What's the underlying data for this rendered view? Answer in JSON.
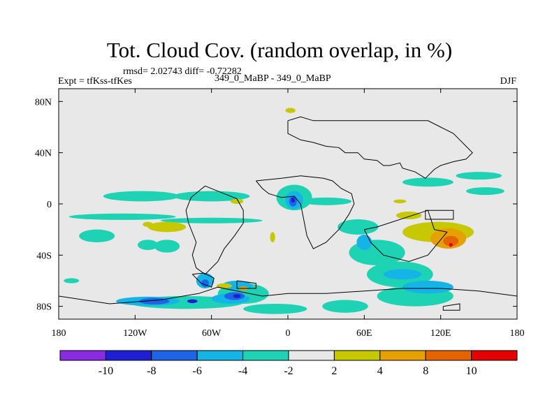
{
  "header": {
    "title": "Tot. Cloud Cov. (random overlap, in %)",
    "stats": "rmsd= 2.02743 diff= -0.72282",
    "experiment": "Expt = tfKss-tfKes",
    "period": "349_0_MaBP - 349_0_MaBP",
    "season": "DJF"
  },
  "axes": {
    "x_range": [
      -180,
      180
    ],
    "y_range": [
      -90,
      90
    ],
    "x_ticks": [
      {
        "value": -180,
        "label": "180"
      },
      {
        "value": -120,
        "label": "120W"
      },
      {
        "value": -60,
        "label": "60W"
      },
      {
        "value": 0,
        "label": "0"
      },
      {
        "value": 60,
        "label": "60E"
      },
      {
        "value": 120,
        "label": "120E"
      },
      {
        "value": 180,
        "label": "180"
      }
    ],
    "y_ticks": [
      {
        "value": 80,
        "label": "80N"
      },
      {
        "value": 40,
        "label": "40N"
      },
      {
        "value": 0,
        "label": "0"
      },
      {
        "value": -40,
        "label": "40S"
      },
      {
        "value": -80,
        "label": "80S"
      }
    ]
  },
  "colorbar": {
    "colors": [
      "#8a2be2",
      "#1e1ed2",
      "#1e64e6",
      "#14b4e6",
      "#1ed2b4",
      "#e8e8e8",
      "#c8c800",
      "#e6a000",
      "#e66400",
      "#e60000"
    ],
    "labels": [
      {
        "boundary": 1,
        "text": "-10"
      },
      {
        "boundary": 2,
        "text": "-8"
      },
      {
        "boundary": 3,
        "text": "-6"
      },
      {
        "boundary": 4,
        "text": "-4"
      },
      {
        "boundary": 5,
        "text": "-2"
      },
      {
        "boundary": 6,
        "text": "2"
      },
      {
        "boundary": 7,
        "text": "4"
      },
      {
        "boundary": 8,
        "text": "8"
      },
      {
        "boundary": 9,
        "text": "10"
      }
    ]
  },
  "chart_data": {
    "type": "heatmap",
    "background_color": "#e8e8e8",
    "fields": [
      {
        "level": "-4 to -2",
        "color": "#1ed2b4",
        "shapes": [
          {
            "lon": -115,
            "lat": 6,
            "rx": 30,
            "ry": 4
          },
          {
            "lon": -60,
            "lat": 6,
            "rx": 30,
            "ry": 4
          },
          {
            "lon": 110,
            "lat": 17,
            "rx": 20,
            "ry": 3.5
          },
          {
            "lon": 155,
            "lat": 10,
            "rx": 15,
            "ry": 3
          },
          {
            "lon": 150,
            "lat": 22,
            "rx": 18,
            "ry": 3
          },
          {
            "lon": -130,
            "lat": -10,
            "rx": 42,
            "ry": 2.5
          },
          {
            "lon": -60,
            "lat": -13,
            "rx": 40,
            "ry": 2.2
          },
          {
            "lon": -150,
            "lat": -25,
            "rx": 14,
            "ry": 5
          },
          {
            "lon": -95,
            "lat": -33,
            "rx": 10,
            "ry": 5
          },
          {
            "lon": -110,
            "lat": -32,
            "rx": 8,
            "ry": 4
          },
          {
            "lon": 5,
            "lat": 5,
            "rx": 14,
            "ry": 10
          },
          {
            "lon": 30,
            "lat": 2,
            "rx": 20,
            "ry": 3
          },
          {
            "lon": 55,
            "lat": -18,
            "rx": 16,
            "ry": 6
          },
          {
            "lon": 70,
            "lat": -38,
            "rx": 22,
            "ry": 10
          },
          {
            "lon": 88,
            "lat": -55,
            "rx": 26,
            "ry": 10
          },
          {
            "lon": 100,
            "lat": -72,
            "rx": 30,
            "ry": 8
          },
          {
            "lon": -80,
            "lat": -77,
            "rx": 45,
            "ry": 5
          },
          {
            "lon": -35,
            "lat": -70,
            "rx": 20,
            "ry": 8
          },
          {
            "lon": -10,
            "lat": -82,
            "rx": 25,
            "ry": 4
          },
          {
            "lon": 45,
            "lat": -80,
            "rx": 18,
            "ry": 5
          },
          {
            "lon": -170,
            "lat": -60,
            "rx": 6,
            "ry": 2
          }
        ]
      },
      {
        "level": "-6 to -4",
        "color": "#14b4e6",
        "shapes": [
          {
            "lon": -65,
            "lat": -60,
            "rx": 7,
            "ry": 6
          },
          {
            "lon": -40,
            "lat": -64,
            "rx": 12,
            "ry": 4
          },
          {
            "lon": -110,
            "lat": -76,
            "rx": 25,
            "ry": 3.5
          },
          {
            "lon": -45,
            "lat": -74,
            "rx": 15,
            "ry": 4
          },
          {
            "lon": 5,
            "lat": 3,
            "rx": 7,
            "ry": 7
          },
          {
            "lon": 90,
            "lat": -55,
            "rx": 15,
            "ry": 4
          },
          {
            "lon": 110,
            "lat": -65,
            "rx": 20,
            "ry": 5
          },
          {
            "lon": 60,
            "lat": -30,
            "rx": 6,
            "ry": 6
          }
        ]
      },
      {
        "level": "-8 to -6",
        "color": "#1e64e6",
        "shapes": [
          {
            "lon": -105,
            "lat": -76,
            "rx": 12,
            "ry": 2.5
          },
          {
            "lon": -42,
            "lat": -72,
            "rx": 8,
            "ry": 3
          },
          {
            "lon": 4,
            "lat": 2,
            "rx": 3,
            "ry": 4
          },
          {
            "lon": -65,
            "lat": -62,
            "rx": 3,
            "ry": 3
          }
        ]
      },
      {
        "level": "-10 to -8",
        "color": "#1e1ed2",
        "shapes": [
          {
            "lon": -75,
            "lat": -76,
            "rx": 4,
            "ry": 1.5
          },
          {
            "lon": -40,
            "lat": -72,
            "rx": 3,
            "ry": 1.5
          },
          {
            "lon": 4,
            "lat": 3,
            "rx": 1.5,
            "ry": 2
          }
        ]
      },
      {
        "level": "2 to 4",
        "color": "#c8c800",
        "shapes": [
          {
            "lon": -95,
            "lat": -18,
            "rx": 15,
            "ry": 4
          },
          {
            "lon": 95,
            "lat": -9,
            "rx": 10,
            "ry": 3
          },
          {
            "lon": -110,
            "lat": -16,
            "rx": 4,
            "ry": 2
          },
          {
            "lon": -40,
            "lat": 2,
            "rx": 5,
            "ry": 2
          },
          {
            "lon": 2,
            "lat": 73,
            "rx": 4,
            "ry": 2
          },
          {
            "lon": -12,
            "lat": -26,
            "rx": 2,
            "ry": 4
          },
          {
            "lon": 118,
            "lat": -22,
            "rx": 28,
            "ry": 8
          },
          {
            "lon": 88,
            "lat": 2,
            "rx": 5,
            "ry": 1.5
          },
          {
            "lon": -50,
            "lat": -64,
            "rx": 6,
            "ry": 2
          }
        ]
      },
      {
        "level": "4 to 8",
        "color": "#e6a000",
        "shapes": [
          {
            "lon": 126,
            "lat": -27,
            "rx": 14,
            "ry": 8
          },
          {
            "lon": -35,
            "lat": -66,
            "rx": 4,
            "ry": 1.5
          }
        ]
      },
      {
        "level": "8 to 10",
        "color": "#e66400",
        "shapes": [
          {
            "lon": 128,
            "lat": -29,
            "rx": 6,
            "ry": 4
          }
        ]
      },
      {
        "level": "> 10",
        "color": "#e60000",
        "shapes": [
          {
            "lon": 128,
            "lat": -32,
            "rx": 1.5,
            "ry": 1.5
          }
        ]
      }
    ],
    "coastlines": [
      [
        [
          0,
          65
        ],
        [
          0,
          55
        ],
        [
          10,
          50
        ],
        [
          20,
          48
        ],
        [
          30,
          45
        ],
        [
          40,
          44
        ],
        [
          45,
          40
        ],
        [
          55,
          40
        ],
        [
          60,
          35
        ],
        [
          70,
          34
        ],
        [
          75,
          30
        ],
        [
          80,
          30
        ],
        [
          88,
          32
        ],
        [
          90,
          28
        ],
        [
          100,
          25
        ],
        [
          108,
          20
        ],
        [
          115,
          27
        ],
        [
          120,
          30
        ],
        [
          130,
          33
        ],
        [
          140,
          35
        ],
        [
          145,
          40
        ],
        [
          140,
          45
        ],
        [
          135,
          50
        ],
        [
          130,
          55
        ],
        [
          120,
          60
        ],
        [
          110,
          65
        ],
        [
          90,
          65
        ],
        [
          70,
          65
        ],
        [
          60,
          65
        ],
        [
          50,
          65
        ],
        [
          30,
          65
        ],
        [
          20,
          65
        ],
        [
          10,
          68
        ],
        [
          0,
          65
        ]
      ],
      [
        [
          -25,
          18
        ],
        [
          -5,
          20
        ],
        [
          10,
          22
        ],
        [
          28,
          20
        ],
        [
          35,
          18
        ],
        [
          42,
          12
        ],
        [
          50,
          8
        ],
        [
          52,
          0
        ],
        [
          48,
          -8
        ],
        [
          40,
          -20
        ],
        [
          30,
          -30
        ],
        [
          20,
          -35
        ],
        [
          15,
          -25
        ],
        [
          12,
          -10
        ],
        [
          10,
          0
        ],
        [
          5,
          6
        ],
        [
          -5,
          5
        ],
        [
          -15,
          8
        ],
        [
          -20,
          12
        ],
        [
          -25,
          18
        ]
      ],
      [
        [
          -65,
          14
        ],
        [
          -55,
          10
        ],
        [
          -40,
          4
        ],
        [
          -35,
          -5
        ],
        [
          -35,
          -15
        ],
        [
          -42,
          -25
        ],
        [
          -50,
          -35
        ],
        [
          -55,
          -45
        ],
        [
          -65,
          -55
        ],
        [
          -72,
          -50
        ],
        [
          -75,
          -40
        ],
        [
          -72,
          -30
        ],
        [
          -78,
          -15
        ],
        [
          -80,
          -5
        ],
        [
          -76,
          5
        ],
        [
          -70,
          10
        ],
        [
          -65,
          14
        ]
      ],
      [
        [
          -180,
          -72
        ],
        [
          -140,
          -78
        ],
        [
          -100,
          -75
        ],
        [
          -70,
          -70
        ],
        [
          -55,
          -65
        ],
        [
          -40,
          -68
        ],
        [
          -20,
          -72
        ],
        [
          0,
          -70
        ],
        [
          30,
          -70
        ],
        [
          60,
          -68
        ],
        [
          90,
          -66
        ],
        [
          120,
          -66
        ],
        [
          150,
          -68
        ],
        [
          180,
          -72
        ],
        [
          180,
          -90
        ],
        [
          -180,
          -90
        ],
        [
          -180,
          -72
        ]
      ],
      [
        [
          -75,
          -55
        ],
        [
          -68,
          -62
        ],
        [
          -60,
          -65
        ],
        [
          -58,
          -58
        ],
        [
          -66,
          -54
        ],
        [
          -75,
          -55
        ]
      ],
      [
        [
          -40,
          -60
        ],
        [
          -25,
          -62
        ],
        [
          -25,
          -66
        ],
        [
          -40,
          -66
        ],
        [
          -40,
          -60
        ]
      ],
      [
        [
          60,
          -20
        ],
        [
          70,
          -18
        ],
        [
          110,
          -5
        ],
        [
          115,
          -20
        ],
        [
          125,
          -22
        ],
        [
          110,
          -40
        ],
        [
          95,
          -45
        ],
        [
          75,
          -40
        ],
        [
          65,
          -30
        ],
        [
          60,
          -20
        ]
      ],
      [
        [
          108,
          -5
        ],
        [
          130,
          -5
        ],
        [
          130,
          -12
        ],
        [
          108,
          -12
        ],
        [
          108,
          -5
        ]
      ],
      [
        [
          122,
          -80
        ],
        [
          135,
          -78
        ],
        [
          135,
          -83
        ],
        [
          122,
          -83
        ],
        [
          122,
          -80
        ]
      ]
    ]
  }
}
